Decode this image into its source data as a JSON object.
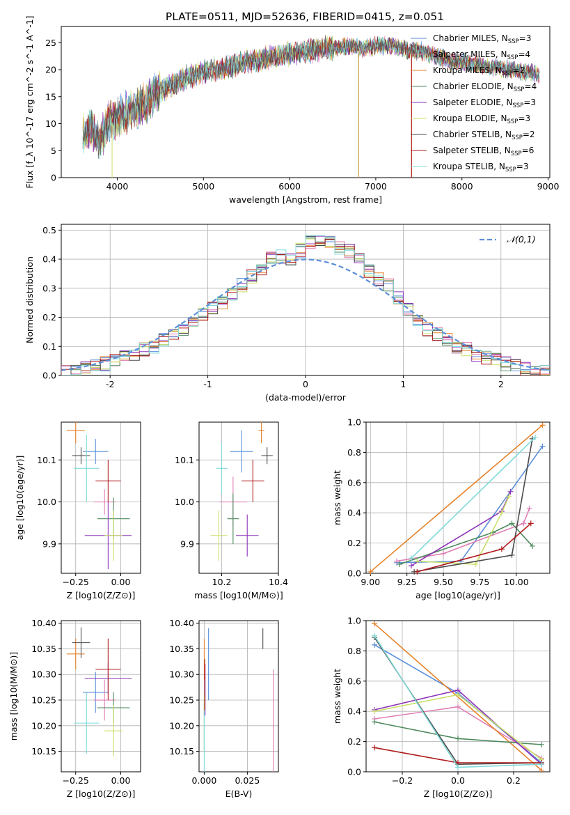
{
  "figure_title": "PLATE=0511, MJD=52636, FIBERID=0415, z=0.051",
  "models": [
    {
      "name": "Chabrier MILES",
      "nssp": "3",
      "color": "#5b8fd9"
    },
    {
      "name": "Salpeter MILES",
      "nssp": "4",
      "color": "#e07fb5"
    },
    {
      "name": "Kroupa MILES",
      "nssp": "2",
      "color": "#e6822a"
    },
    {
      "name": "Chabrier ELODIE",
      "nssp": "4",
      "color": "#4e8a5e"
    },
    {
      "name": "Salpeter ELODIE",
      "nssp": "3",
      "color": "#8e33b8"
    },
    {
      "name": "Kroupa ELODIE",
      "nssp": "3",
      "color": "#c9e06a"
    },
    {
      "name": "Chabrier STELIB",
      "nssp": "2",
      "color": "#4a4a4a"
    },
    {
      "name": "Salpeter STELIB",
      "nssp": "6",
      "color": "#b01c1c"
    },
    {
      "name": "Kroupa STELIB",
      "nssp": "3",
      "color": "#7fd9d9"
    }
  ],
  "chart_data": [
    {
      "type": "line",
      "xlabel": "wavelength [Angstrom, rest frame]",
      "ylabel": "Flux [f_λ 10^-17 erg cm^-2 s^-1 A^-1]",
      "xlim": [
        3350,
        9020
      ],
      "ylim": [
        0,
        28
      ],
      "xticks": [
        4000,
        5000,
        6000,
        7000,
        8000,
        9000
      ],
      "yticks": [
        0,
        5,
        10,
        15,
        20,
        25
      ],
      "grid": false,
      "legend": "right",
      "x": [
        3600,
        3700,
        3800,
        3900,
        4000,
        4100,
        4200,
        4300,
        4400,
        4500,
        4600,
        4700,
        4800,
        4900,
        5000,
        5100,
        5200,
        5300,
        5400,
        5500,
        5600,
        5700,
        5800,
        5900,
        6000,
        6100,
        6200,
        6300,
        6400,
        6500,
        6600,
        6700,
        6800,
        6900,
        7000,
        7100,
        7200,
        7300,
        7400,
        7500,
        7600,
        7700,
        7800,
        7900,
        8000,
        8100,
        8200,
        8300,
        8400,
        8500,
        8600,
        8700,
        8800,
        8900
      ],
      "y": [
        7.5,
        9.0,
        6.5,
        10.5,
        11.0,
        12.0,
        12.5,
        13.5,
        15.0,
        16.0,
        17.0,
        17.5,
        18.5,
        19.0,
        19.5,
        20.0,
        20.0,
        20.5,
        21.0,
        21.5,
        21.5,
        22.0,
        22.5,
        22.5,
        23.0,
        23.0,
        23.5,
        23.5,
        24.0,
        24.0,
        24.0,
        24.5,
        24.0,
        24.0,
        24.5,
        24.5,
        24.5,
        24.0,
        23.5,
        23.5,
        23.0,
        22.5,
        22.0,
        21.5,
        21.5,
        21.0,
        21.0,
        20.5,
        20.5,
        20.0,
        20.0,
        19.5,
        19.5,
        19.0
      ]
    },
    {
      "type": "line",
      "title": "",
      "xlabel": "(data-model)/error",
      "ylabel": "Normed distribution",
      "xlim": [
        -2.5,
        2.5
      ],
      "ylim": [
        0,
        0.52
      ],
      "xticks": [
        -2,
        -1,
        0,
        1,
        2
      ],
      "yticks": [
        0.0,
        0.1,
        0.2,
        0.3,
        0.4,
        0.5
      ],
      "grid": true,
      "legend": "top-right",
      "gaussian_label": "𝒩(0,1)",
      "bin_edges": [
        -2.5,
        -2.4,
        -2.3,
        -2.2,
        -2.1,
        -2.0,
        -1.9,
        -1.8,
        -1.7,
        -1.6,
        -1.5,
        -1.4,
        -1.3,
        -1.2,
        -1.1,
        -1.0,
        -0.9,
        -0.8,
        -0.7,
        -0.6,
        -0.5,
        -0.4,
        -0.3,
        -0.2,
        -0.1,
        0.0,
        0.1,
        0.2,
        0.3,
        0.4,
        0.5,
        0.6,
        0.7,
        0.8,
        0.9,
        1.0,
        1.1,
        1.2,
        1.3,
        1.4,
        1.5,
        1.6,
        1.7,
        1.8,
        1.9,
        2.0,
        2.1,
        2.2,
        2.3,
        2.4,
        2.5
      ],
      "hist_values": [
        0.01,
        0.02,
        0.03,
        0.03,
        0.04,
        0.05,
        0.06,
        0.07,
        0.09,
        0.1,
        0.12,
        0.14,
        0.16,
        0.19,
        0.21,
        0.23,
        0.25,
        0.28,
        0.31,
        0.34,
        0.37,
        0.4,
        0.41,
        0.4,
        0.43,
        0.46,
        0.47,
        0.46,
        0.44,
        0.43,
        0.4,
        0.36,
        0.33,
        0.31,
        0.27,
        0.23,
        0.19,
        0.16,
        0.14,
        0.12,
        0.1,
        0.09,
        0.07,
        0.06,
        0.06,
        0.04,
        0.03,
        0.02,
        0.02,
        0.01
      ]
    },
    {
      "type": "scatter",
      "xlabel": "Z [log10(Z/Z⊙)]",
      "ylabel": "age  [log10(age/yr)]",
      "xlim": [
        -0.33,
        0.11
      ],
      "ylim": [
        9.83,
        10.19
      ],
      "xticks": [
        -0.25,
        0.0
      ],
      "xticklabels": [
        "−0.25",
        "0.00"
      ],
      "yticks": [
        9.9,
        10.0,
        10.1
      ],
      "grid": true,
      "points": [
        {
          "x": -0.14,
          "y": 10.12,
          "xerr": 0.07,
          "yerr": 0.03
        },
        {
          "x": -0.09,
          "y": 10.0,
          "xerr": 0.06,
          "yerr": 0.03
        },
        {
          "x": -0.25,
          "y": 10.17,
          "xerr": 0.05,
          "yerr": 0.03
        },
        {
          "x": -0.04,
          "y": 9.96,
          "xerr": 0.09,
          "yerr": 0.05
        },
        {
          "x": -0.07,
          "y": 9.92,
          "xerr": 0.13,
          "yerr": 0.08
        },
        {
          "x": -0.04,
          "y": 9.92,
          "xerr": 0.05,
          "yerr": 0.06
        },
        {
          "x": -0.22,
          "y": 10.11,
          "xerr": 0.05,
          "yerr": 0.02
        },
        {
          "x": -0.07,
          "y": 10.05,
          "xerr": 0.07,
          "yerr": 0.05
        },
        {
          "x": -0.19,
          "y": 10.08,
          "xerr": 0.07,
          "yerr": 0.08
        }
      ]
    },
    {
      "type": "scatter",
      "xlabel": "mass [log10(M/M⊙)]",
      "ylabel": "",
      "xlim": [
        10.12,
        10.4
      ],
      "ylim": [
        9.83,
        10.19
      ],
      "xticks": [
        10.2,
        10.4
      ],
      "xticklabels": [
        "10.2",
        "10.4"
      ],
      "yticks": [
        9.9,
        10.0,
        10.1
      ],
      "grid": true,
      "points": [
        {
          "x": 10.27,
          "y": 10.12,
          "xerr": 0.04,
          "yerr": 0.05
        },
        {
          "x": 10.24,
          "y": 10.0,
          "xerr": 0.05,
          "yerr": 0.06
        },
        {
          "x": 10.34,
          "y": 10.17,
          "xerr": 0.01,
          "yerr": 0.03
        },
        {
          "x": 10.24,
          "y": 9.96,
          "xerr": 0.02,
          "yerr": 0.06
        },
        {
          "x": 10.29,
          "y": 9.92,
          "xerr": 0.04,
          "yerr": 0.05
        },
        {
          "x": 10.19,
          "y": 9.92,
          "xerr": 0.03,
          "yerr": 0.06
        },
        {
          "x": 10.36,
          "y": 10.11,
          "xerr": 0.02,
          "yerr": 0.02
        },
        {
          "x": 10.31,
          "y": 10.05,
          "xerr": 0.04,
          "yerr": 0.05
        },
        {
          "x": 10.2,
          "y": 10.08,
          "xerr": 0.02,
          "yerr": 0.06
        }
      ]
    },
    {
      "type": "line",
      "xlabel": "age  [log10(age/yr)]",
      "ylabel": "mass weight",
      "xlim": [
        8.97,
        10.23
      ],
      "ylim": [
        0,
        1
      ],
      "xticks": [
        9.0,
        9.25,
        9.5,
        9.75,
        10.0
      ],
      "xticklabels": [
        "9.00",
        "9.25",
        "9.50",
        "9.75",
        "10.00"
      ],
      "yticks": [
        0.0,
        0.2,
        0.4,
        0.6,
        0.8,
        1.0
      ],
      "grid": true,
      "series": [
        {
          "x": [
            9.18,
            9.62,
            10.18
          ],
          "y": [
            0.07,
            0.08,
            0.84
          ]
        },
        {
          "x": [
            9.18,
            9.5,
            10.05,
            10.09
          ],
          "y": [
            0.08,
            0.13,
            0.33,
            0.43
          ]
        },
        {
          "x": [
            9.0,
            10.18
          ],
          "y": [
            0.01,
            0.98
          ]
        },
        {
          "x": [
            9.2,
            9.84,
            9.97,
            10.11
          ],
          "y": [
            0.06,
            0.27,
            0.33,
            0.18
          ]
        },
        {
          "x": [
            9.28,
            9.9,
            9.96
          ],
          "y": [
            0.05,
            0.41,
            0.54
          ]
        },
        {
          "x": [
            9.32,
            9.72,
            9.9,
            9.95
          ],
          "y": [
            0.08,
            0.06,
            0.4,
            0.51
          ]
        },
        {
          "x": [
            9.3,
            9.97,
            10.11
          ],
          "y": [
            0.01,
            0.12,
            0.89
          ]
        },
        {
          "x": [
            9.32,
            9.9,
            10.1
          ],
          "y": [
            0.01,
            0.16,
            0.33
          ]
        },
        {
          "x": [
            9.28,
            10.13
          ],
          "y": [
            0.1,
            0.9
          ]
        }
      ]
    },
    {
      "type": "scatter",
      "xlabel": "Z [log10(Z/Z⊙)]",
      "ylabel": "mass [log10(M/M⊙)]",
      "xlim": [
        -0.33,
        0.11
      ],
      "ylim": [
        10.11,
        10.405
      ],
      "xticks": [
        -0.25,
        0.0
      ],
      "xticklabels": [
        "−0.25",
        "0.00"
      ],
      "yticks": [
        10.15,
        10.2,
        10.25,
        10.3,
        10.35,
        10.4
      ],
      "grid": true,
      "points": [
        {
          "x": -0.14,
          "y": 10.265,
          "xerr": 0.07,
          "yerr": 0.04
        },
        {
          "x": -0.09,
          "y": 10.25,
          "xerr": 0.06,
          "yerr": 0.04
        },
        {
          "x": -0.25,
          "y": 10.34,
          "xerr": 0.05,
          "yerr": 0.03
        },
        {
          "x": -0.04,
          "y": 10.235,
          "xerr": 0.09,
          "yerr": 0.03
        },
        {
          "x": -0.07,
          "y": 10.292,
          "xerr": 0.13,
          "yerr": 0.03
        },
        {
          "x": -0.04,
          "y": 10.19,
          "xerr": 0.05,
          "yerr": 0.05
        },
        {
          "x": -0.22,
          "y": 10.362,
          "xerr": 0.05,
          "yerr": 0.03
        },
        {
          "x": -0.07,
          "y": 10.31,
          "xerr": 0.07,
          "yerr": 0.06
        },
        {
          "x": -0.19,
          "y": 10.205,
          "xerr": 0.07,
          "yerr": 0.06
        }
      ]
    },
    {
      "type": "scatter",
      "xlabel": "E(B-V)",
      "ylabel": "",
      "xlim": [
        -0.003,
        0.043
      ],
      "ylim": [
        10.11,
        10.405
      ],
      "xticks": [
        0.0,
        0.025
      ],
      "xticklabels": [
        "0.000",
        "0.025"
      ],
      "yticks": [
        10.15,
        10.2,
        10.25,
        10.3,
        10.35,
        10.4
      ],
      "grid": true,
      "points": [
        {
          "x": 0.0025,
          "y": 10.32,
          "yerr": 0.07
        },
        {
          "x": 0.04,
          "y": 10.21,
          "yerr": 0.1
        },
        {
          "x": 0.0,
          "y": 10.33,
          "yerr": 0.04
        },
        {
          "x": 0.0,
          "y": 10.2,
          "yerr": 0.05
        },
        {
          "x": 0.0005,
          "y": 10.27,
          "yerr": 0.05
        },
        {
          "x": 0.0,
          "y": 10.2,
          "yerr": 0.06
        },
        {
          "x": 0.034,
          "y": 10.37,
          "yerr": 0.02
        },
        {
          "x": 0.0003,
          "y": 10.28,
          "yerr": 0.05
        },
        {
          "x": 0.0,
          "y": 10.17,
          "yerr": 0.06
        }
      ]
    },
    {
      "type": "line",
      "xlabel": "Z [log10(Z/Z⊙)]",
      "ylabel": "mass weight",
      "xlim": [
        -0.33,
        0.33
      ],
      "ylim": [
        0,
        1
      ],
      "xticks": [
        -0.2,
        0.0,
        0.2
      ],
      "xticklabels": [
        "−0.2",
        "0.0",
        "0.2"
      ],
      "yticks": [
        0.0,
        0.2,
        0.4,
        0.6,
        0.8,
        1.0
      ],
      "grid": true,
      "series": [
        {
          "x": [
            -0.3,
            0.0,
            0.3
          ],
          "y": [
            0.84,
            0.52,
            0.06
          ]
        },
        {
          "x": [
            -0.3,
            0.0,
            0.3
          ],
          "y": [
            0.35,
            0.43,
            0.09
          ]
        },
        {
          "x": [
            -0.3,
            0.3
          ],
          "y": [
            0.98,
            0.01
          ]
        },
        {
          "x": [
            -0.3,
            0.0,
            0.3
          ],
          "y": [
            0.33,
            0.22,
            0.18
          ]
        },
        {
          "x": [
            -0.3,
            0.0,
            0.3
          ],
          "y": [
            0.41,
            0.54,
            0.05
          ]
        },
        {
          "x": [
            -0.3,
            0.0,
            0.3
          ],
          "y": [
            0.4,
            0.51,
            0.08
          ]
        },
        {
          "x": [
            -0.3,
            0.0,
            0.3
          ],
          "y": [
            0.89,
            0.05,
            0.06
          ]
        },
        {
          "x": [
            -0.3,
            0.0,
            0.3
          ],
          "y": [
            0.16,
            0.06,
            0.06
          ]
        },
        {
          "x": [
            -0.3,
            0.0,
            0.3
          ],
          "y": [
            0.9,
            0.03,
            0.05
          ]
        }
      ]
    }
  ]
}
